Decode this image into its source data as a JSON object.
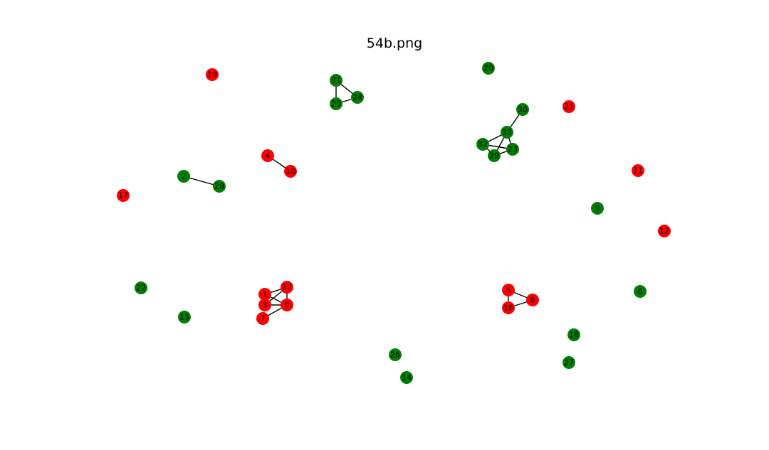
{
  "title": "54b.png",
  "colors": {
    "red": "#ff0000",
    "green": "#008000",
    "edge": "#000000"
  },
  "nodes": [
    {
      "id": "0",
      "color": "red"
    },
    {
      "id": "1",
      "color": "red"
    },
    {
      "id": "2",
      "color": "green"
    },
    {
      "id": "3",
      "color": "red"
    },
    {
      "id": "4",
      "color": "red"
    },
    {
      "id": "5",
      "color": "red"
    },
    {
      "id": "6",
      "color": "red"
    },
    {
      "id": "7",
      "color": "red"
    },
    {
      "id": "8",
      "color": "green"
    },
    {
      "id": "9",
      "color": "green"
    },
    {
      "id": "10",
      "color": "red"
    },
    {
      "id": "11",
      "color": "red"
    },
    {
      "id": "12",
      "color": "red"
    },
    {
      "id": "13",
      "color": "red"
    },
    {
      "id": "14",
      "color": "green"
    },
    {
      "id": "15",
      "color": "green"
    },
    {
      "id": "16",
      "color": "red"
    },
    {
      "id": "17",
      "color": "red"
    },
    {
      "id": "18",
      "color": "green"
    },
    {
      "id": "19",
      "color": "red"
    },
    {
      "id": "20",
      "color": "green"
    },
    {
      "id": "21",
      "color": "red"
    },
    {
      "id": "22",
      "color": "green"
    },
    {
      "id": "23",
      "color": "green"
    },
    {
      "id": "24",
      "color": "green"
    },
    {
      "id": "25",
      "color": "green"
    },
    {
      "id": "26",
      "color": "green"
    },
    {
      "id": "27",
      "color": "green"
    },
    {
      "id": "28",
      "color": "green"
    },
    {
      "id": "29",
      "color": "green"
    },
    {
      "id": "30",
      "color": "green"
    },
    {
      "id": "31",
      "color": "green"
    },
    {
      "id": "32",
      "color": "green"
    },
    {
      "id": "33",
      "color": "green"
    }
  ],
  "edges": [
    [
      "31",
      "24"
    ],
    [
      "31",
      "25"
    ],
    [
      "25",
      "24"
    ],
    [
      "30",
      "33"
    ],
    [
      "33",
      "32"
    ],
    [
      "33",
      "23"
    ],
    [
      "33",
      "29"
    ],
    [
      "32",
      "23"
    ],
    [
      "32",
      "29"
    ],
    [
      "29",
      "23"
    ],
    [
      "4",
      "10"
    ],
    [
      "2",
      "28"
    ],
    [
      "1",
      "13"
    ],
    [
      "1",
      "0"
    ],
    [
      "1",
      "3"
    ],
    [
      "3",
      "13"
    ],
    [
      "3",
      "0"
    ],
    [
      "13",
      "0"
    ],
    [
      "7",
      "0"
    ],
    [
      "5",
      "6"
    ],
    [
      "5",
      "16"
    ],
    [
      "16",
      "6"
    ]
  ]
}
